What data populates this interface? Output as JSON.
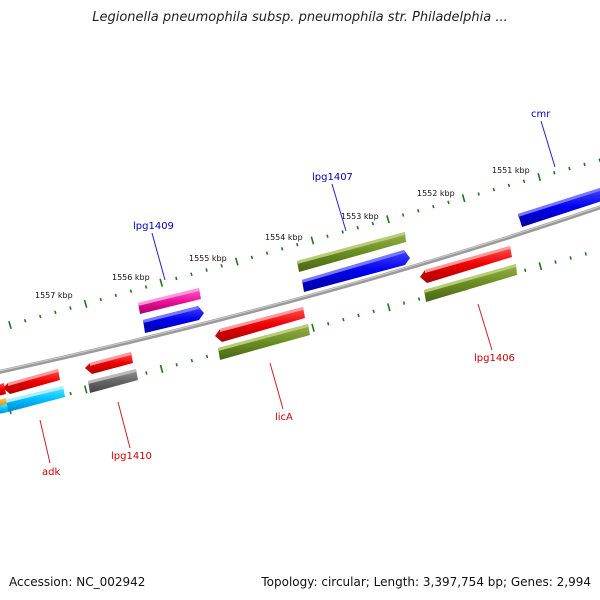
{
  "title": "Legionella pneumophila subsp. pneumophila str. Philadelphia ...",
  "footer": {
    "accession": "Accession: NC_002942",
    "topology": "Topology: circular; Length: 3,397,754 bp; Genes: 2,994"
  },
  "colors": {
    "backbone": "#8a8a8a",
    "ticks": "#1a7a1a",
    "label_plus": "#0000bb",
    "label_minus": "#cc0000",
    "label_line_plus": "#2222cc",
    "label_line_minus": "#cc2222"
  },
  "kbp_labels": [
    "1551 kbp",
    "1552 kbp",
    "1553 kbp",
    "1554 kbp",
    "1555 kbp",
    "1556 kbp",
    "1557 kbp"
  ],
  "gene_labels": [
    {
      "name": "cmr",
      "strand": "plus"
    },
    {
      "name": "lpg1407",
      "strand": "plus"
    },
    {
      "name": "lpg1409",
      "strand": "plus"
    },
    {
      "name": "lpg1406",
      "strand": "minus"
    },
    {
      "name": "licA",
      "strand": "minus"
    },
    {
      "name": "lpg1410",
      "strand": "minus"
    },
    {
      "name": "adk",
      "strand": "minus"
    }
  ]
}
